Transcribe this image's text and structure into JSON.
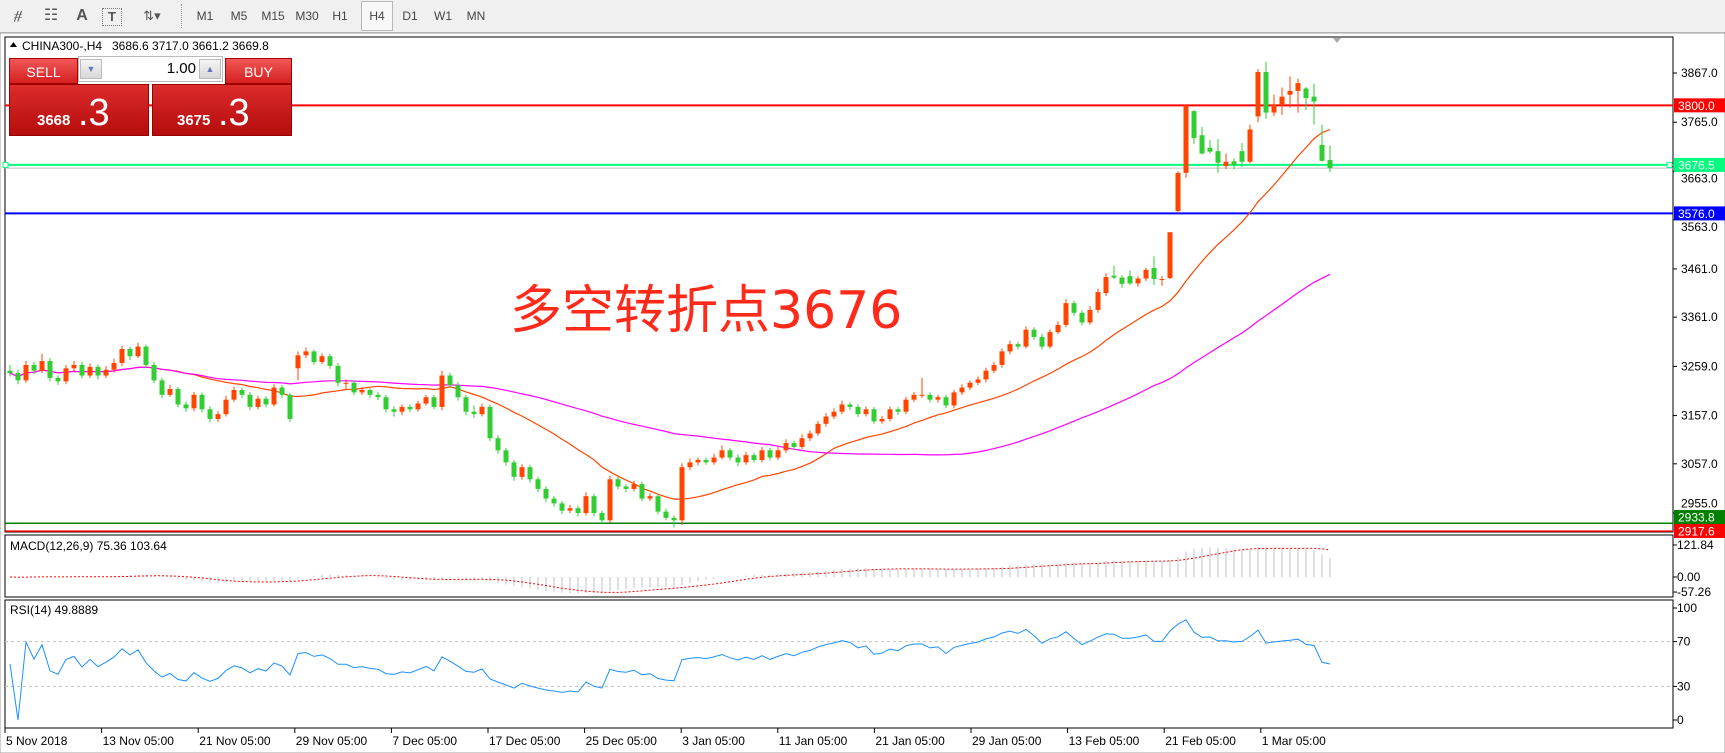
{
  "toolbar": {
    "tools": [
      {
        "icon": "expert-advisor-icon",
        "glyph": "⧣"
      },
      {
        "icon": "fibonacci-icon",
        "glyph": "☷"
      },
      {
        "icon": "text-icon",
        "glyph": "A"
      },
      {
        "icon": "text-label-icon",
        "glyph": "T"
      },
      {
        "icon": "arrows-icon",
        "glyph": "⇅▾"
      }
    ],
    "timeframes": [
      "M1",
      "M5",
      "M15",
      "M30",
      "H1",
      "H4",
      "D1",
      "W1",
      "MN"
    ],
    "active_timeframe": "H4"
  },
  "chart": {
    "symbol": "CHINA300-,H4",
    "ohlc_readout": "3686.6 3717.0 3661.2 3669.8",
    "annotation": "多空转折点3676"
  },
  "trade_panel": {
    "sell_label": "SELL",
    "buy_label": "BUY",
    "lot": "1.00",
    "sell_price_main": "3668",
    "sell_price_big": ".3",
    "buy_price_main": "3675",
    "buy_price_big": ".3"
  },
  "price_axis": [
    {
      "value": 3867.0,
      "label": "3867.0"
    },
    {
      "value": 3765.0,
      "label": "3765.0"
    },
    {
      "value": 3663.0,
      "label": "3663.0"
    },
    {
      "value": 3563.0,
      "label": "3563.0"
    },
    {
      "value": 3461.0,
      "label": "3461.0"
    },
    {
      "value": 3361.0,
      "label": "3361.0"
    },
    {
      "value": 3259.0,
      "label": "3259.0"
    },
    {
      "value": 3157.0,
      "label": "3157.0"
    },
    {
      "value": 3057.0,
      "label": "3057.0"
    },
    {
      "value": 2955.0,
      "label": "2955.0"
    }
  ],
  "levels": [
    {
      "price": 3800.0,
      "label": "3800.0",
      "color": "#ff0000",
      "text_color": "#ffffff"
    },
    {
      "price": 3676.5,
      "label": "3676.5",
      "color": "#00ff7f",
      "text_color": "#ffffff"
    },
    {
      "price": 3576.0,
      "label": "3576.0",
      "color": "#0000ff",
      "text_color": "#ffffff"
    },
    {
      "price": 2917.6,
      "label": "2917.6",
      "color": "#ff0000",
      "text_color": "#ffffff"
    },
    {
      "price": 2933.8,
      "label": "2933.8",
      "color": "#008000",
      "text_color": "#ffffff"
    }
  ],
  "bid_price": 3669.8,
  "colors": {
    "bull": "#ff4500",
    "bear": "#32cd32",
    "ma_fast": "#ff4500",
    "ma_slow": "#ff00ff",
    "rsi": "#1e90ff",
    "macd_hist": "#c0c0c0",
    "macd_signal": "#ff0000"
  },
  "candles": [
    [
      3250,
      3262,
      3238,
      3245
    ],
    [
      3245,
      3252,
      3222,
      3230
    ],
    [
      3230,
      3270,
      3225,
      3262
    ],
    [
      3262,
      3268,
      3243,
      3250
    ],
    [
      3250,
      3285,
      3245,
      3270
    ],
    [
      3270,
      3276,
      3228,
      3235
    ],
    [
      3235,
      3240,
      3220,
      3228
    ],
    [
      3228,
      3262,
      3222,
      3255
    ],
    [
      3255,
      3270,
      3248,
      3262
    ],
    [
      3262,
      3268,
      3234,
      3240
    ],
    [
      3240,
      3265,
      3235,
      3258
    ],
    [
      3258,
      3263,
      3232,
      3240
    ],
    [
      3240,
      3260,
      3235,
      3252
    ],
    [
      3252,
      3275,
      3246,
      3266
    ],
    [
      3266,
      3302,
      3260,
      3295
    ],
    [
      3295,
      3300,
      3272,
      3280
    ],
    [
      3280,
      3308,
      3276,
      3300
    ],
    [
      3300,
      3304,
      3255,
      3262
    ],
    [
      3262,
      3268,
      3224,
      3230
    ],
    [
      3230,
      3236,
      3193,
      3200
    ],
    [
      3200,
      3220,
      3196,
      3212
    ],
    [
      3212,
      3216,
      3174,
      3180
    ],
    [
      3180,
      3186,
      3165,
      3172
    ],
    [
      3172,
      3206,
      3166,
      3200
    ],
    [
      3200,
      3205,
      3163,
      3170
    ],
    [
      3170,
      3176,
      3144,
      3150
    ],
    [
      3150,
      3166,
      3144,
      3160
    ],
    [
      3160,
      3198,
      3155,
      3190
    ],
    [
      3190,
      3217,
      3185,
      3210
    ],
    [
      3210,
      3215,
      3194,
      3200
    ],
    [
      3200,
      3206,
      3168,
      3175
    ],
    [
      3175,
      3198,
      3170,
      3192
    ],
    [
      3192,
      3197,
      3174,
      3180
    ],
    [
      3180,
      3222,
      3176,
      3215
    ],
    [
      3215,
      3220,
      3194,
      3200
    ],
    [
      3200,
      3204,
      3144,
      3150
    ],
    [
      3255,
      3290,
      3230,
      3282
    ],
    [
      3282,
      3298,
      3276,
      3290
    ],
    [
      3290,
      3294,
      3262,
      3268
    ],
    [
      3268,
      3286,
      3263,
      3280
    ],
    [
      3280,
      3285,
      3254,
      3260
    ],
    [
      3260,
      3266,
      3218,
      3225
    ],
    [
      3225,
      3232,
      3210,
      3225
    ],
    [
      3225,
      3230,
      3199,
      3205
    ],
    [
      3205,
      3216,
      3200,
      3210
    ],
    [
      3210,
      3214,
      3194,
      3200
    ],
    [
      3200,
      3206,
      3189,
      3195
    ],
    [
      3195,
      3200,
      3163,
      3170
    ],
    [
      3170,
      3176,
      3155,
      3165
    ],
    [
      3165,
      3180,
      3158,
      3175
    ],
    [
      3175,
      3180,
      3164,
      3170
    ],
    [
      3170,
      3188,
      3165,
      3182
    ],
    [
      3182,
      3200,
      3178,
      3195
    ],
    [
      3195,
      3200,
      3170,
      3175
    ],
    [
      3175,
      3250,
      3168,
      3240
    ],
    [
      3240,
      3246,
      3214,
      3220
    ],
    [
      3220,
      3226,
      3188,
      3195
    ],
    [
      3195,
      3200,
      3158,
      3165
    ],
    [
      3165,
      3178,
      3152,
      3160
    ],
    [
      3160,
      3182,
      3155,
      3175
    ],
    [
      3175,
      3180,
      3104,
      3110
    ],
    [
      3110,
      3116,
      3078,
      3085
    ],
    [
      3085,
      3090,
      3053,
      3060
    ],
    [
      3060,
      3065,
      3022,
      3030
    ],
    [
      3030,
      3056,
      3024,
      3050
    ],
    [
      3050,
      3055,
      3018,
      3025
    ],
    [
      3025,
      3030,
      2998,
      3005
    ],
    [
      3005,
      3010,
      2978,
      2985
    ],
    [
      2985,
      2990,
      2968,
      2975
    ],
    [
      2975,
      2980,
      2953,
      2960
    ],
    [
      2960,
      2972,
      2955,
      2965
    ],
    [
      2965,
      2970,
      2948,
      2955
    ],
    [
      2955,
      2998,
      2950,
      2990
    ],
    [
      2990,
      2995,
      2948,
      2955
    ],
    [
      2955,
      2960,
      2934,
      2940
    ],
    [
      2940,
      3032,
      2935,
      3025
    ],
    [
      3025,
      3030,
      3004,
      3010
    ],
    [
      3010,
      3014,
      2998,
      3005
    ],
    [
      3005,
      3022,
      3000,
      3015
    ],
    [
      3015,
      3020,
      2980,
      2985
    ],
    [
      2985,
      2996,
      2980,
      2990
    ],
    [
      2990,
      2995,
      2952,
      2958
    ],
    [
      2958,
      2964,
      2940,
      2945
    ],
    [
      2945,
      2950,
      2925,
      2940
    ],
    [
      2940,
      3058,
      2930,
      3050
    ],
    [
      3050,
      3068,
      3044,
      3060
    ],
    [
      3060,
      3070,
      3054,
      3065
    ],
    [
      3065,
      3070,
      3055,
      3060
    ],
    [
      3060,
      3078,
      3055,
      3070
    ],
    [
      3070,
      3095,
      3066,
      3085
    ],
    [
      3085,
      3090,
      3064,
      3070
    ],
    [
      3070,
      3076,
      3052,
      3060
    ],
    [
      3060,
      3082,
      3055,
      3075
    ],
    [
      3075,
      3080,
      3060,
      3065
    ],
    [
      3065,
      3092,
      3060,
      3085
    ],
    [
      3085,
      3090,
      3064,
      3070
    ],
    [
      3070,
      3092,
      3065,
      3085
    ],
    [
      3085,
      3108,
      3080,
      3100
    ],
    [
      3100,
      3105,
      3086,
      3092
    ],
    [
      3092,
      3118,
      3088,
      3110
    ],
    [
      3110,
      3126,
      3104,
      3120
    ],
    [
      3120,
      3146,
      3115,
      3140
    ],
    [
      3140,
      3162,
      3134,
      3155
    ],
    [
      3155,
      3172,
      3150,
      3165
    ],
    [
      3165,
      3188,
      3160,
      3180
    ],
    [
      3180,
      3185,
      3168,
      3175
    ],
    [
      3175,
      3180,
      3154,
      3160
    ],
    [
      3160,
      3176,
      3155,
      3170
    ],
    [
      3170,
      3175,
      3140,
      3145
    ],
    [
      3145,
      3156,
      3140,
      3150
    ],
    [
      3150,
      3176,
      3145,
      3170
    ],
    [
      3170,
      3175,
      3158,
      3165
    ],
    [
      3165,
      3196,
      3160,
      3190
    ],
    [
      3190,
      3206,
      3185,
      3200
    ],
    [
      3200,
      3235,
      3194,
      3200
    ],
    [
      3200,
      3205,
      3184,
      3190
    ],
    [
      3190,
      3200,
      3184,
      3195
    ],
    [
      3195,
      3200,
      3172,
      3178
    ],
    [
      3178,
      3210,
      3172,
      3205
    ],
    [
      3205,
      3222,
      3200,
      3215
    ],
    [
      3215,
      3230,
      3210,
      3225
    ],
    [
      3225,
      3238,
      3220,
      3232
    ],
    [
      3232,
      3256,
      3226,
      3250
    ],
    [
      3250,
      3268,
      3245,
      3262
    ],
    [
      3262,
      3296,
      3256,
      3290
    ],
    [
      3290,
      3312,
      3284,
      3305
    ],
    [
      3305,
      3310,
      3294,
      3300
    ],
    [
      3300,
      3342,
      3296,
      3335
    ],
    [
      3335,
      3340,
      3314,
      3320
    ],
    [
      3320,
      3326,
      3294,
      3300
    ],
    [
      3300,
      3336,
      3296,
      3330
    ],
    [
      3330,
      3352,
      3326,
      3345
    ],
    [
      3345,
      3398,
      3340,
      3390
    ],
    [
      3390,
      3395,
      3364,
      3370
    ],
    [
      3370,
      3375,
      3344,
      3350
    ],
    [
      3350,
      3384,
      3345,
      3376
    ],
    [
      3376,
      3420,
      3370,
      3413
    ],
    [
      3411,
      3452,
      3405,
      3444
    ],
    [
      3447,
      3468,
      3440,
      3443
    ],
    [
      3443,
      3448,
      3422,
      3430
    ],
    [
      3446,
      3458,
      3428,
      3431
    ],
    [
      3431,
      3446,
      3424,
      3441
    ],
    [
      3441,
      3463,
      3436,
      3459
    ],
    [
      3463,
      3487,
      3428,
      3440
    ],
    [
      3440,
      3446,
      3426,
      3440
    ],
    [
      3442,
      3537,
      3440,
      3537
    ],
    [
      3581,
      3663,
      3576,
      3660
    ],
    [
      3660,
      3800,
      3650,
      3800
    ],
    [
      3788,
      3790,
      3720,
      3732
    ],
    [
      3738,
      3755,
      3698,
      3700
    ],
    [
      3712,
      3728,
      3700,
      3704
    ],
    [
      3705,
      3730,
      3660,
      3681
    ],
    [
      3674,
      3700,
      3668,
      3683
    ],
    [
      3684,
      3690,
      3668,
      3676
    ],
    [
      3705,
      3722,
      3672,
      3683
    ],
    [
      3683,
      3760,
      3680,
      3750
    ],
    [
      3777,
      3875,
      3765,
      3869
    ],
    [
      3869,
      3890,
      3772,
      3785
    ],
    [
      3785,
      3822,
      3778,
      3802
    ],
    [
      3800,
      3837,
      3780,
      3818
    ],
    [
      3822,
      3860,
      3795,
      3830
    ],
    [
      3830,
      3855,
      3785,
      3846
    ],
    [
      3835,
      3838,
      3790,
      3815
    ],
    [
      3818,
      3845,
      3760,
      3808
    ],
    [
      3718,
      3760,
      3683,
      3685
    ],
    [
      3686.6,
      3717.0,
      3661.2,
      3669.8
    ]
  ],
  "macd": {
    "label": "MACD(12,26,9) 75.36 103.64",
    "axis": [
      {
        "value": 121.84,
        "label": "121.84"
      },
      {
        "value": 0.0,
        "label": "0.00"
      },
      {
        "value": -57.26,
        "label": "-57.26"
      }
    ]
  },
  "rsi": {
    "label": "RSI(14) 49.8889",
    "axis": [
      {
        "value": 100,
        "label": "100"
      },
      {
        "value": 70,
        "label": "70"
      },
      {
        "value": 30,
        "label": "30"
      },
      {
        "value": 0,
        "label": "0"
      }
    ],
    "levels": [
      70,
      30
    ]
  },
  "time_axis": [
    "5 Nov 2018",
    "13 Nov 05:00",
    "21 Nov 05:00",
    "29 Nov 05:00",
    "7 Dec 05:00",
    "17 Dec 05:00",
    "25 Dec 05:00",
    "3 Jan 05:00",
    "11 Jan 05:00",
    "21 Jan 05:00",
    "29 Jan 05:00",
    "13 Feb 05:00",
    "21 Feb 05:00",
    "1 Mar 05:00"
  ]
}
